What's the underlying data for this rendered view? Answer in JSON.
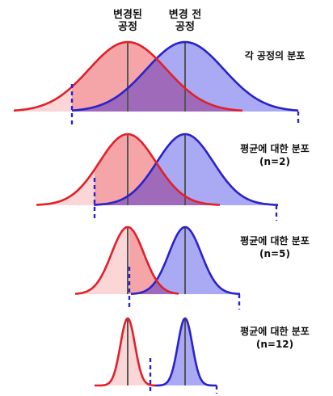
{
  "header": {
    "changed_line1": "변경된",
    "changed_line2": "공정",
    "before_line1": "변경 전",
    "before_line2": "공정"
  },
  "panels": [
    {
      "label_line1": "각 공정의 분포",
      "label_line2": ""
    },
    {
      "label_line1": "평균에 대한 분포",
      "label_line2": "(n=2)"
    },
    {
      "label_line1": "평균에 대한 분포",
      "label_line2": "(n=5)"
    },
    {
      "label_line1": "평균에 대한 분포",
      "label_line2": "(n=12)"
    }
  ],
  "colors": {
    "changed_line": "#e0202a",
    "changed_fill": "#f5a5a8",
    "changed_tail_fill": "#fbd6d7",
    "before_line": "#2b22c8",
    "before_fill": "#a9a9f4",
    "overlap_fill": "#9d63b4",
    "mean_line": "#555555"
  }
}
